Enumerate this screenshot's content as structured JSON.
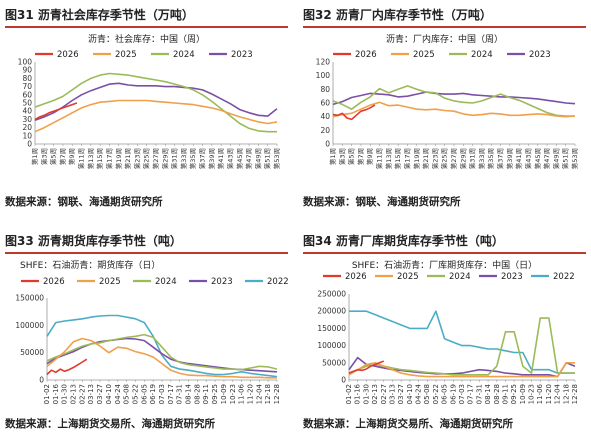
{
  "panels": [
    {
      "title": "图31  沥青社会库存季节性（万吨）",
      "source": "数据来源：钢联、海通期货研究所"
    },
    {
      "title": "图32  沥青厂内库存季节性（万吨）",
      "source": "数据来源：钢联、海通期货研究所"
    },
    {
      "title": "图33  沥青期货库存季节性（吨）",
      "source": "数据来源：上海期货交易所、海通期货研究所"
    },
    {
      "title": "图34  沥青厂库期货库存季节性（吨）",
      "source": "数据来源：上海期货交易所、海通期货研究所"
    }
  ],
  "colors": {
    "2026": "#e03a2e",
    "2025": "#f0a04b",
    "2024": "#9bbb59",
    "2023": "#7b4fa6",
    "2022": "#4bacc6",
    "title_rule": "#c0392b"
  },
  "chart_data": [
    {
      "type": "line",
      "title": "沥青：社会库存：中国（周）",
      "x_ticks": [
        "第1周",
        "第3周",
        "第5周",
        "第7周",
        "第9周",
        "第11周",
        "第13周",
        "第15周",
        "第17周",
        "第19周",
        "第21周",
        "第23周",
        "第25周",
        "第27周",
        "第29周",
        "第31周",
        "第33周",
        "第35周",
        "第37周",
        "第39周",
        "第41周",
        "第43周",
        "第45周",
        "第47周",
        "第49周",
        "第51周",
        "第53周"
      ],
      "ylim": [
        0,
        100
      ],
      "y_ticks": [
        "0",
        "10",
        "20",
        "30",
        "40",
        "50",
        "60",
        "70",
        "80",
        "90",
        "100"
      ],
      "series": [
        {
          "name": "2026",
          "x": [
            1,
            2,
            3,
            4,
            5,
            6,
            7,
            8,
            9,
            10
          ],
          "values": [
            30,
            33,
            35,
            38,
            40,
            42,
            44,
            46,
            48,
            50
          ]
        },
        {
          "name": "2025",
          "x": [
            1,
            3,
            5,
            7,
            9,
            11,
            13,
            15,
            17,
            19,
            21,
            23,
            25,
            27,
            29,
            31,
            33,
            35,
            37,
            39,
            41,
            43,
            45,
            47,
            49,
            51,
            53
          ],
          "values": [
            15,
            20,
            26,
            32,
            38,
            44,
            48,
            51,
            52,
            53,
            53,
            53,
            53,
            52,
            51,
            50,
            49,
            48,
            46,
            44,
            41,
            37,
            33,
            30,
            27,
            25,
            27
          ]
        },
        {
          "name": "2024",
          "x": [
            1,
            3,
            5,
            7,
            9,
            11,
            13,
            15,
            17,
            19,
            21,
            23,
            25,
            27,
            29,
            31,
            33,
            35,
            37,
            39,
            41,
            43,
            45,
            47,
            49,
            51,
            53
          ],
          "values": [
            45,
            49,
            53,
            58,
            66,
            74,
            80,
            84,
            86,
            85,
            84,
            82,
            80,
            78,
            76,
            73,
            70,
            66,
            60,
            52,
            43,
            34,
            25,
            19,
            16,
            15,
            15
          ]
        },
        {
          "name": "2023",
          "x": [
            1,
            3,
            5,
            7,
            9,
            11,
            13,
            15,
            17,
            19,
            21,
            23,
            25,
            27,
            29,
            31,
            33,
            35,
            37,
            39,
            41,
            43,
            45,
            47,
            49,
            51,
            53
          ],
          "values": [
            29,
            33,
            38,
            45,
            53,
            60,
            65,
            69,
            73,
            74,
            72,
            71,
            71,
            71,
            70,
            70,
            69,
            68,
            66,
            61,
            55,
            49,
            42,
            38,
            35,
            34,
            43
          ]
        }
      ]
    },
    {
      "type": "line",
      "title": "沥青：厂内库存：中国（周）",
      "x_ticks": [
        "第1周",
        "第3周",
        "第5周",
        "第7周",
        "第9周",
        "第11周",
        "第13周",
        "第15周",
        "第17周",
        "第19周",
        "第21周",
        "第23周",
        "第25周",
        "第27周",
        "第29周",
        "第31周",
        "第33周",
        "第35周",
        "第37周",
        "第39周",
        "第41周",
        "第43周",
        "第45周",
        "第47周",
        "第49周",
        "第51周",
        "第53周"
      ],
      "ylim": [
        0,
        120
      ],
      "y_ticks": [
        "0",
        "20",
        "40",
        "60",
        "80",
        "100",
        "120"
      ],
      "series": [
        {
          "name": "2026",
          "x": [
            1,
            2,
            3,
            4,
            5,
            6,
            7,
            8,
            9,
            10
          ],
          "values": [
            43,
            42,
            45,
            38,
            36,
            42,
            48,
            50,
            53,
            57
          ]
        },
        {
          "name": "2025",
          "x": [
            1,
            3,
            5,
            7,
            9,
            11,
            13,
            15,
            17,
            19,
            21,
            23,
            25,
            27,
            29,
            31,
            33,
            35,
            37,
            39,
            41,
            43,
            45,
            47,
            49,
            51,
            53
          ],
          "values": [
            40,
            43,
            45,
            51,
            57,
            61,
            56,
            57,
            54,
            51,
            50,
            51,
            49,
            48,
            44,
            42,
            43,
            45,
            44,
            42,
            42,
            43,
            44,
            43,
            41,
            40,
            41
          ]
        },
        {
          "name": "2024",
          "x": [
            1,
            3,
            5,
            7,
            9,
            11,
            13,
            15,
            17,
            19,
            21,
            23,
            25,
            27,
            29,
            31,
            33,
            35,
            37,
            39,
            41,
            43,
            45,
            47,
            49,
            51,
            53
          ],
          "values": [
            63,
            58,
            51,
            61,
            69,
            81,
            75,
            80,
            85,
            80,
            76,
            75,
            67,
            63,
            61,
            60,
            63,
            68,
            73,
            68,
            64,
            58,
            52,
            46,
            42,
            41,
            41
          ]
        },
        {
          "name": "2023",
          "x": [
            1,
            3,
            5,
            7,
            9,
            11,
            13,
            15,
            17,
            19,
            21,
            23,
            25,
            27,
            29,
            31,
            33,
            35,
            37,
            39,
            41,
            43,
            45,
            47,
            49,
            51,
            53
          ],
          "values": [
            58,
            62,
            68,
            71,
            74,
            73,
            72,
            69,
            70,
            73,
            76,
            74,
            73,
            73,
            74,
            72,
            71,
            70,
            69,
            69,
            68,
            67,
            66,
            64,
            62,
            60,
            59
          ]
        }
      ]
    },
    {
      "type": "line",
      "title": "SHFE：石油沥青：期货库存（日）",
      "x_ticks": [
        "01-02",
        "01-16",
        "01-30",
        "02-13",
        "02-27",
        "03-13",
        "03-27",
        "04-10",
        "04-24",
        "05-08",
        "05-22",
        "06-05",
        "06-19",
        "07-03",
        "07-17",
        "07-31",
        "08-14",
        "08-28",
        "09-11",
        "09-25",
        "10-09",
        "10-23",
        "11-06",
        "11-20",
        "12-04",
        "12-18",
        "12-28"
      ],
      "ylim": [
        0,
        150000
      ],
      "y_ticks": [
        "0",
        "50000",
        "100000",
        "150000"
      ],
      "series": [
        {
          "name": "2026",
          "x": [
            0,
            0.5,
            1,
            1.5,
            2,
            2.5,
            3,
            3.5,
            4,
            4.5
          ],
          "values": [
            10000,
            18000,
            14000,
            20000,
            16000,
            19000,
            23000,
            28000,
            33000,
            38000
          ]
        },
        {
          "name": "2025",
          "x": [
            0,
            1,
            2,
            3,
            4,
            5,
            6,
            7,
            8,
            9,
            10,
            11,
            12,
            13,
            14,
            15,
            16,
            17,
            18,
            19,
            20,
            21,
            22,
            23,
            24,
            25,
            26
          ],
          "values": [
            25000,
            38000,
            52000,
            70000,
            76000,
            72000,
            62000,
            50000,
            60000,
            58000,
            52000,
            48000,
            42000,
            30000,
            18000,
            12000,
            9000,
            8000,
            8000,
            7000,
            6000,
            6000,
            5000,
            5000,
            5000,
            4000,
            4000
          ]
        },
        {
          "name": "2024",
          "x": [
            0,
            1,
            2,
            3,
            4,
            5,
            6,
            7,
            8,
            9,
            10,
            11,
            12,
            13,
            14,
            15,
            16,
            17,
            18,
            19,
            20,
            21,
            22,
            23,
            24,
            25,
            26
          ],
          "values": [
            35000,
            42000,
            48000,
            55000,
            62000,
            66000,
            68000,
            72000,
            75000,
            78000,
            80000,
            83000,
            78000,
            60000,
            42000,
            32000,
            28000,
            26000,
            24000,
            22000,
            20000,
            20000,
            19000,
            22000,
            25000,
            24000,
            20000
          ]
        },
        {
          "name": "2023",
          "x": [
            0,
            1,
            2,
            3,
            4,
            5,
            6,
            7,
            8,
            9,
            10,
            11,
            12,
            13,
            14,
            15,
            16,
            17,
            18,
            19,
            20,
            21,
            22,
            23,
            24,
            25,
            26
          ],
          "values": [
            30000,
            40000,
            46000,
            52000,
            60000,
            66000,
            70000,
            72000,
            74000,
            76000,
            75000,
            72000,
            60000,
            48000,
            38000,
            33000,
            30000,
            28000,
            26000,
            24000,
            22000,
            20000,
            19000,
            18000,
            17000,
            16000,
            15000
          ]
        },
        {
          "name": "2022",
          "x": [
            0,
            1,
            2,
            3,
            4,
            5,
            6,
            7,
            8,
            9,
            10,
            11,
            12,
            13,
            14,
            15,
            16,
            17,
            18,
            19,
            20,
            21,
            22,
            23,
            24,
            25,
            26
          ],
          "values": [
            80000,
            105000,
            108000,
            110000,
            112000,
            115000,
            117000,
            118000,
            118000,
            115000,
            112000,
            105000,
            80000,
            45000,
            25000,
            20000,
            18000,
            15000,
            12000,
            10000,
            10000,
            12000,
            15000,
            12000,
            10000,
            8000,
            6000
          ]
        }
      ]
    },
    {
      "type": "line",
      "title": "SHFE：石油沥青：厂库期货库存：中国（日）",
      "x_ticks": [
        "01-02",
        "01-16",
        "01-30",
        "02-13",
        "02-27",
        "03-13",
        "03-27",
        "04-10",
        "04-24",
        "05-08",
        "05-22",
        "06-05",
        "06-19",
        "07-03",
        "07-17",
        "07-31",
        "08-14",
        "08-28",
        "09-11",
        "09-25",
        "10-09",
        "10-23",
        "11-06",
        "11-20",
        "12-04",
        "12-18",
        "12-28"
      ],
      "ylim": [
        0,
        250000
      ],
      "y_ticks": [
        "0",
        "50000",
        "100000",
        "150000",
        "200000",
        "250000"
      ],
      "series": [
        {
          "name": "2026",
          "x": [
            0,
            0.5,
            1,
            1.5,
            2,
            2.5,
            3,
            3.5,
            4
          ],
          "values": [
            20000,
            25000,
            30000,
            28000,
            32000,
            40000,
            45000,
            50000,
            55000
          ]
        },
        {
          "name": "2025",
          "x": [
            0,
            1,
            2,
            3,
            4,
            5,
            6,
            7,
            8,
            9,
            10,
            11,
            12,
            13,
            14,
            15,
            16,
            17,
            18,
            19,
            20,
            21,
            22,
            23,
            24,
            25,
            26
          ],
          "values": [
            15000,
            30000,
            45000,
            50000,
            40000,
            30000,
            20000,
            15000,
            12000,
            10000,
            10000,
            10000,
            10000,
            10000,
            10000,
            10000,
            10000,
            10000,
            10000,
            10000,
            10000,
            10000,
            10000,
            10000,
            10000,
            50000,
            50000
          ]
        },
        {
          "name": "2024",
          "x": [
            0,
            1,
            2,
            3,
            4,
            5,
            6,
            7,
            8,
            9,
            10,
            11,
            12,
            13,
            14,
            15,
            16,
            17,
            18,
            19,
            20,
            21,
            22,
            23,
            24,
            25,
            26
          ],
          "values": [
            20000,
            30000,
            40000,
            45000,
            40000,
            35000,
            30000,
            28000,
            25000,
            22000,
            20000,
            18000,
            15000,
            15000,
            15000,
            15000,
            15000,
            40000,
            140000,
            140000,
            40000,
            20000,
            180000,
            180000,
            20000,
            20000,
            20000
          ]
        },
        {
          "name": "2023",
          "x": [
            0,
            1,
            2,
            3,
            4,
            5,
            6,
            7,
            8,
            9,
            10,
            11,
            12,
            13,
            14,
            15,
            16,
            17,
            18,
            19,
            20,
            21,
            22,
            23,
            24,
            25,
            26
          ],
          "values": [
            30000,
            65000,
            45000,
            40000,
            35000,
            30000,
            28000,
            25000,
            22000,
            20000,
            18000,
            18000,
            18000,
            20000,
            25000,
            30000,
            28000,
            25000,
            20000,
            18000,
            15000,
            15000,
            15000,
            15000,
            10000,
            50000,
            40000
          ]
        },
        {
          "name": "2022",
          "x": [
            0,
            1,
            2,
            3,
            4,
            5,
            6,
            7,
            8,
            9,
            10,
            11,
            12,
            13,
            14,
            15,
            16,
            17,
            18,
            19,
            20,
            21,
            22,
            23,
            24,
            25,
            26
          ],
          "values": [
            200000,
            200000,
            200000,
            190000,
            180000,
            170000,
            160000,
            150000,
            150000,
            150000,
            200000,
            120000,
            110000,
            100000,
            100000,
            95000,
            90000,
            90000,
            85000,
            80000,
            80000,
            30000,
            30000,
            30000,
            20000,
            20000,
            20000
          ]
        }
      ]
    }
  ]
}
